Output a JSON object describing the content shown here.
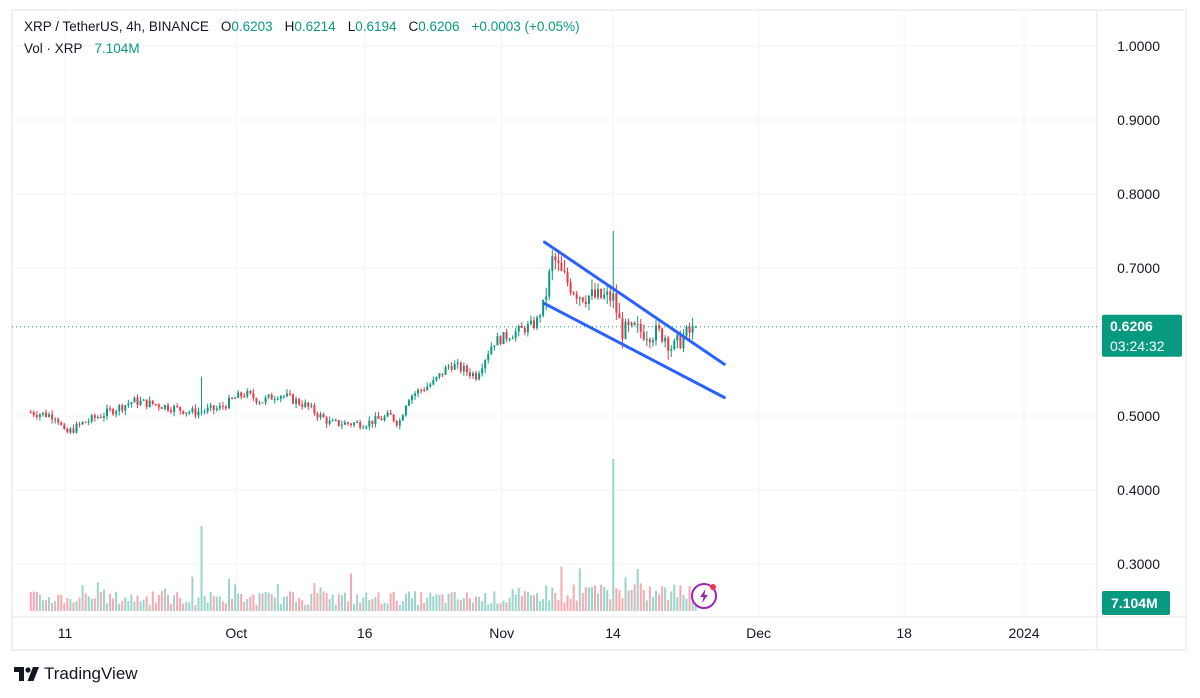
{
  "legend": {
    "title": "XRP / TetherUS, 4h, BINANCE",
    "o_label": "O",
    "o_value": "0.6203",
    "h_label": "H",
    "h_value": "0.6214",
    "l_label": "L",
    "l_value": "0.6194",
    "c_label": "C",
    "c_value": "0.6206",
    "change": "+0.0003 (+0.05%)",
    "vol_label": "Vol · XRP",
    "vol_value": "7.104M"
  },
  "price_badge": {
    "price": "0.6206",
    "countdown": "03:24:32"
  },
  "volume_badge": "7.104M",
  "brand": "TradingView",
  "colors": {
    "up": "#089981",
    "down": "#f23645",
    "up_vol": "#9ad4cc",
    "down_vol": "#f7a9b0",
    "channel": "#2962ff",
    "badge": "#089981",
    "text": "#131722"
  },
  "chart_data": {
    "type": "candlestick",
    "symbol": "XRP / TetherUS",
    "interval": "4h",
    "exchange": "BINANCE",
    "y_ticks": [
      "1.0000",
      "0.9000",
      "0.8000",
      "0.7000",
      "0.5000",
      "0.4000",
      "0.3000"
    ],
    "ylim": [
      0.27,
      1.03
    ],
    "x_ticks": [
      "11",
      "Oct",
      "16",
      "Nov",
      "14",
      "Dec",
      "18",
      "2024"
    ],
    "last_price": 0.6206,
    "close_trend": [
      {
        "date": "2023-09-07",
        "close": 0.505
      },
      {
        "date": "2023-09-10",
        "close": 0.5
      },
      {
        "date": "2023-09-11",
        "close": 0.475
      },
      {
        "date": "2023-09-13",
        "close": 0.49
      },
      {
        "date": "2023-09-17",
        "close": 0.51
      },
      {
        "date": "2023-09-19",
        "close": 0.52
      },
      {
        "date": "2023-09-22",
        "close": 0.515
      },
      {
        "date": "2023-09-26",
        "close": 0.505
      },
      {
        "date": "2023-09-29",
        "close": 0.51
      },
      {
        "date": "2023-10-01",
        "close": 0.525
      },
      {
        "date": "2023-10-02",
        "close": 0.53
      },
      {
        "date": "2023-10-04",
        "close": 0.52
      },
      {
        "date": "2023-10-06",
        "close": 0.53
      },
      {
        "date": "2023-10-09",
        "close": 0.515
      },
      {
        "date": "2023-10-12",
        "close": 0.49
      },
      {
        "date": "2023-10-16",
        "close": 0.49
      },
      {
        "date": "2023-10-19",
        "close": 0.5
      },
      {
        "date": "2023-10-20",
        "close": 0.49
      },
      {
        "date": "2023-10-21",
        "close": 0.525
      },
      {
        "date": "2023-10-24",
        "close": 0.545
      },
      {
        "date": "2023-10-26",
        "close": 0.57
      },
      {
        "date": "2023-10-29",
        "close": 0.555
      },
      {
        "date": "2023-10-31",
        "close": 0.6
      },
      {
        "date": "2023-11-02",
        "close": 0.61
      },
      {
        "date": "2023-11-05",
        "close": 0.625
      },
      {
        "date": "2023-11-06",
        "close": 0.655
      },
      {
        "date": "2023-11-07",
        "close": 0.715
      },
      {
        "date": "2023-11-08",
        "close": 0.69
      },
      {
        "date": "2023-11-10",
        "close": 0.665
      },
      {
        "date": "2023-11-12",
        "close": 0.66
      },
      {
        "date": "2023-11-14",
        "close": 0.66
      },
      {
        "date": "2023-11-15",
        "close": 0.615
      },
      {
        "date": "2023-11-17",
        "close": 0.615
      },
      {
        "date": "2023-11-20",
        "close": 0.61
      },
      {
        "date": "2023-11-21",
        "close": 0.59
      },
      {
        "date": "2023-11-22",
        "close": 0.605
      },
      {
        "date": "2023-11-24",
        "close": 0.6206
      }
    ],
    "spikes": [
      {
        "date": "2023-09-27",
        "high": 0.553
      },
      {
        "date": "2023-11-14",
        "high": 0.75
      }
    ],
    "channel": {
      "upper": [
        {
          "date": "2023-11-06",
          "price": 0.735
        },
        {
          "date": "2023-11-27",
          "price": 0.57
        }
      ],
      "lower": [
        {
          "date": "2023-11-06",
          "price": 0.652
        },
        {
          "date": "2023-11-27",
          "price": 0.525
        }
      ]
    },
    "volume_last": "7.104M"
  }
}
